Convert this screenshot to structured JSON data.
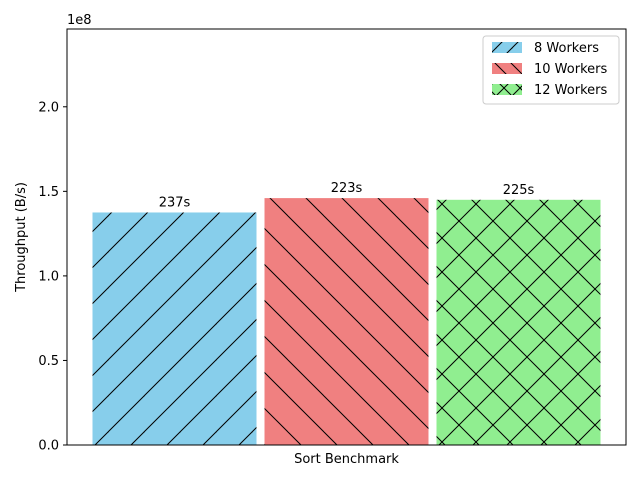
{
  "chart_data": {
    "type": "bar",
    "categories": [
      "Sort Benchmark"
    ],
    "series": [
      {
        "name": "8 Workers",
        "values": [
          137500000
        ],
        "label": "237s",
        "color": "#87CEEB",
        "hatch": "forward-diagonal"
      },
      {
        "name": "10 Workers",
        "values": [
          146000000
        ],
        "label": "223s",
        "color": "#F08080",
        "hatch": "back-diagonal"
      },
      {
        "name": "12 Workers",
        "values": [
          145000000
        ],
        "label": "225s",
        "color": "#90EE90",
        "hatch": "cross-diagonal"
      }
    ],
    "xlabel": "Sort Benchmark",
    "ylabel": "Throughput (B/s)",
    "ylim": [
      0,
      246000000
    ],
    "scale_note": "1e8",
    "yticks": [
      0,
      50000000,
      100000000,
      150000000,
      200000000
    ],
    "ytick_labels": [
      "0.0",
      "0.5",
      "1.0",
      "1.5",
      "2.0"
    ],
    "legend_position": "top-right",
    "grid": false
  }
}
